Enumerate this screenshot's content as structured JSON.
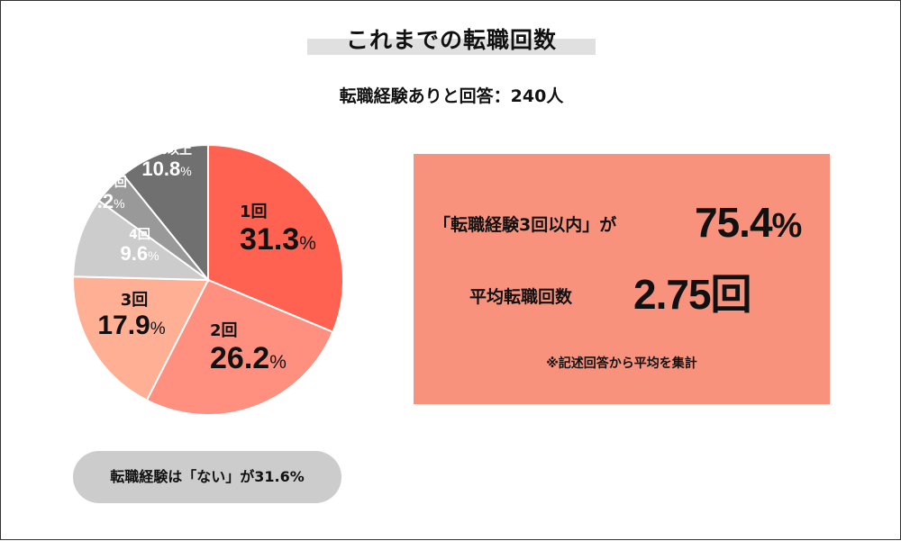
{
  "title": "これまでの転職回数",
  "subtitle": "転職経験ありと回答：240人",
  "summary": {
    "within3_label": "「転職経験3回以内」が",
    "within3_value": "75.4",
    "within3_unit": "%",
    "avg_label": "平均転職回数",
    "avg_value": "2.75",
    "avg_unit": "回",
    "note": "※記述回答から平均を集計"
  },
  "no_experience": "転職経験は「ない」が31.6%",
  "chart_data": {
    "type": "pie",
    "title": "これまでの転職回数",
    "slices": [
      {
        "label": "1回",
        "value": 31.3,
        "display": "31.3",
        "color": "#ff6250"
      },
      {
        "label": "2回",
        "value": 26.2,
        "display": "26.2",
        "color": "#ff9080"
      },
      {
        "label": "3回",
        "value": 17.9,
        "display": "17.9",
        "color": "#ffb094"
      },
      {
        "label": "4回",
        "value": 9.6,
        "display": "9.6",
        "color": "#cccccc"
      },
      {
        "label": "5回",
        "value": 4.2,
        "display": "4.2",
        "color": "#999999"
      },
      {
        "label": "それ以上",
        "value": 10.8,
        "display": "10.8",
        "color": "#707070"
      }
    ],
    "unit": "%",
    "start": "12 o'clock, clockwise"
  }
}
